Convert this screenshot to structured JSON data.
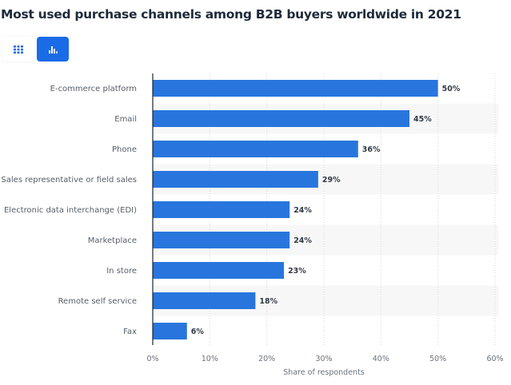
{
  "header": {
    "title": "Most used purchase channels among B2B buyers worldwide in 2021"
  },
  "view_toggle": {
    "table_icon": "grid-icon",
    "chart_icon": "bar-chart-icon",
    "active": "chart"
  },
  "colors": {
    "bar": "#2876dd",
    "accent": "#1a6be6",
    "stripe": "#f7f7f7"
  },
  "chart_data": {
    "type": "bar",
    "orientation": "horizontal",
    "title": "Most used purchase channels among B2B buyers worldwide in 2021",
    "categories": [
      "E-commerce platform",
      "Email",
      "Phone",
      "Sales representative or field sales",
      "Electronic data interchange (EDI)",
      "Marketplace",
      "In store",
      "Remote self service",
      "Fax"
    ],
    "values": [
      50,
      45,
      36,
      29,
      24,
      24,
      23,
      18,
      6
    ],
    "value_labels": [
      "50%",
      "45%",
      "36%",
      "29%",
      "24%",
      "24%",
      "23%",
      "18%",
      "6%"
    ],
    "xlabel": "Share of respondents",
    "ylabel": "",
    "xlim": [
      0,
      60
    ],
    "xticks": [
      0,
      10,
      20,
      30,
      40,
      50,
      60
    ],
    "xtick_labels": [
      "0%",
      "10%",
      "20%",
      "30%",
      "40%",
      "50%",
      "60%"
    ],
    "grid": true,
    "legend": "none"
  }
}
